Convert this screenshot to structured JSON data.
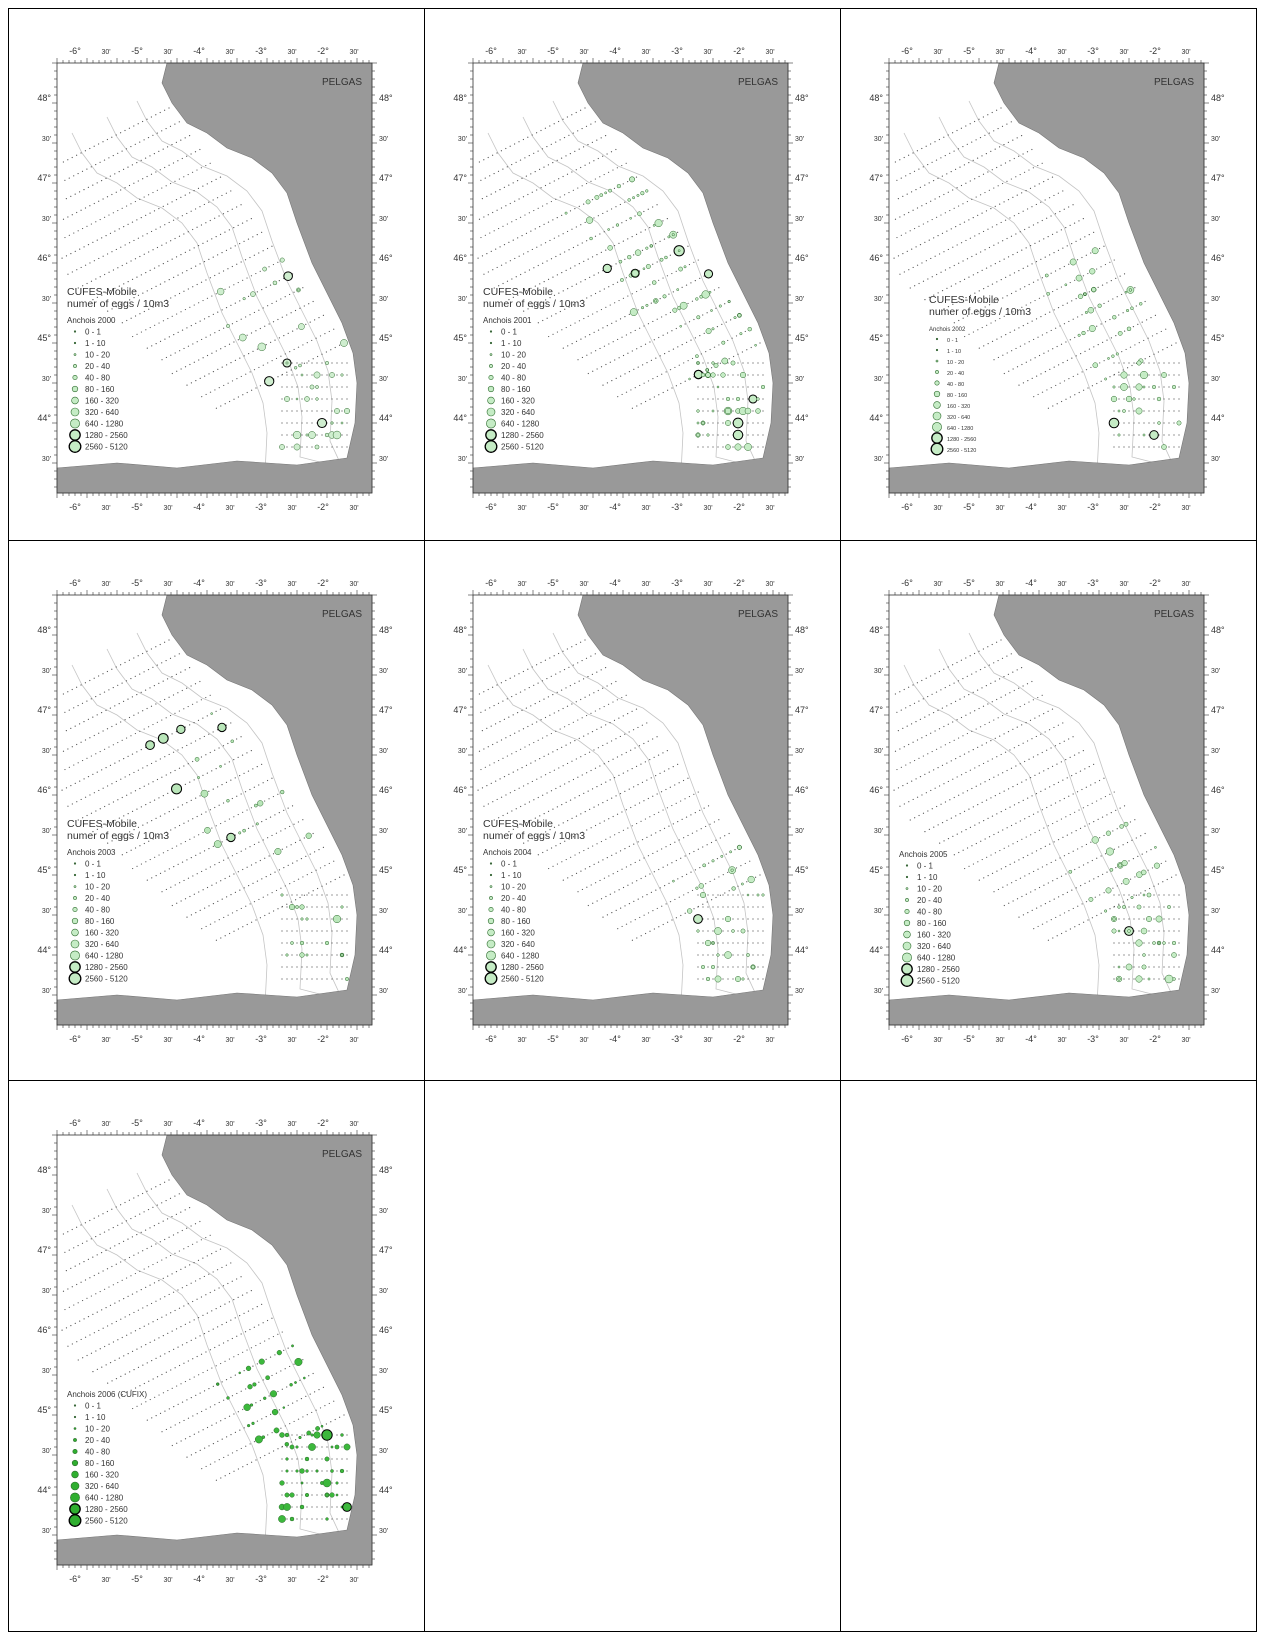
{
  "axes": {
    "lon_labels": [
      "-6°",
      "30'",
      "-5°",
      "30'",
      "-4°",
      "30'",
      "-3°",
      "30'",
      "-2°",
      "30'"
    ],
    "lat_labels": [
      "48°",
      "30'",
      "47°",
      "30'",
      "46°",
      "30'",
      "45°",
      "30'",
      "44°",
      "30'"
    ]
  },
  "legend_classes": [
    "0 - 1",
    "1 - 10",
    "10 - 20",
    "20 - 40",
    "40 - 80",
    "80 - 160",
    "160 - 320",
    "320 - 640",
    "640 - 1280",
    "1280 - 2560",
    "2560 - 5120"
  ],
  "panels": [
    {
      "survey": "PELGAS",
      "heading": [
        "CUFES-Mobile",
        "numer of eggs / 10m3"
      ],
      "legend_title": "Anchois 2000"
    },
    {
      "survey": "PELGAS",
      "heading": [
        "CUFES-Mobile",
        "numer of eggs / 10m3"
      ],
      "legend_title": "Anchois 2001"
    },
    {
      "survey": "PELGAS",
      "heading": [
        "CUFES-Mobile",
        "numer of eggs / 10m3"
      ],
      "legend_title": "Anchois 2002"
    },
    {
      "survey": "PELGAS",
      "heading": [
        "CUFES-Mobile",
        "numer of eggs / 10m3"
      ],
      "legend_title": "Anchois 2003"
    },
    {
      "survey": "PELGAS",
      "heading": [
        "CUFES-Mobile",
        "numer of eggs / 10m3"
      ],
      "legend_title": "Anchois 2004"
    },
    {
      "survey": "PELGAS",
      "legend_title": "Anchois 2005"
    },
    {
      "survey": "PELGAS",
      "legend_title": "Anchois 2006 (CUFIX)"
    }
  ]
}
